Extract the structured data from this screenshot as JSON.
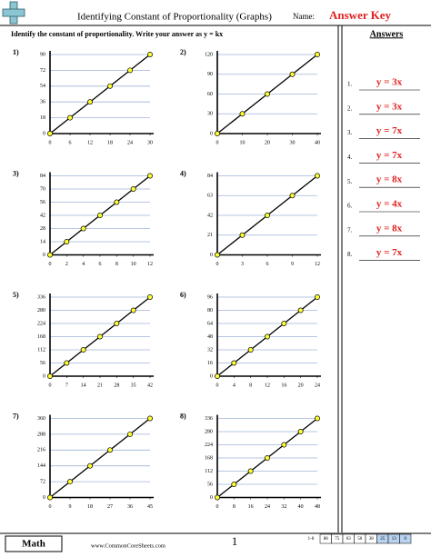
{
  "header": {
    "title": "Identifying Constant of Proportionality (Graphs)",
    "name_label": "Name:",
    "answer_key": "Answer Key"
  },
  "instructions": "Identify the constant of proportionality. Write your answer as y = kx",
  "problems": [
    {
      "label": "1)",
      "chart": {
        "type": "line",
        "x": [
          0,
          6,
          12,
          18,
          24,
          30
        ],
        "values": [
          0,
          18,
          36,
          54,
          72,
          90
        ],
        "xlim": [
          0,
          30
        ],
        "ylim": [
          0,
          90
        ],
        "xticks": [
          0,
          6,
          12,
          18,
          24,
          30
        ],
        "yticks": [
          0,
          18,
          36,
          54,
          72,
          90
        ],
        "grid": true,
        "color": "#000000",
        "marker_color": "#ffff33"
      }
    },
    {
      "label": "2)",
      "chart": {
        "type": "line",
        "x": [
          0,
          10,
          20,
          30,
          40
        ],
        "values": [
          0,
          30,
          60,
          90,
          120
        ],
        "xlim": [
          0,
          40
        ],
        "ylim": [
          0,
          120
        ],
        "xticks": [
          0,
          10,
          20,
          30,
          40
        ],
        "yticks": [
          0,
          30,
          60,
          90,
          120
        ],
        "grid": true,
        "color": "#000000",
        "marker_color": "#ffff33"
      }
    },
    {
      "label": "3)",
      "chart": {
        "type": "line",
        "x": [
          0,
          2,
          4,
          6,
          8,
          10,
          12
        ],
        "values": [
          0,
          14,
          28,
          42,
          56,
          70,
          84
        ],
        "xlim": [
          0,
          12
        ],
        "ylim": [
          0,
          84
        ],
        "xticks": [
          0,
          2,
          4,
          6,
          8,
          10,
          12
        ],
        "yticks": [
          0,
          14,
          28,
          42,
          56,
          70,
          84
        ],
        "grid": true,
        "color": "#000000",
        "marker_color": "#ffff33"
      }
    },
    {
      "label": "4)",
      "chart": {
        "type": "line",
        "x": [
          0,
          3,
          6,
          9,
          12
        ],
        "values": [
          0,
          21,
          42,
          63,
          84
        ],
        "xlim": [
          0,
          12
        ],
        "ylim": [
          0,
          84
        ],
        "xticks": [
          0,
          3,
          6,
          9,
          12
        ],
        "yticks": [
          0,
          21,
          42,
          63,
          84
        ],
        "grid": true,
        "color": "#000000",
        "marker_color": "#ffff33"
      }
    },
    {
      "label": "5)",
      "chart": {
        "type": "line",
        "x": [
          0,
          7,
          14,
          21,
          28,
          35,
          42
        ],
        "values": [
          0,
          56,
          112,
          168,
          224,
          280,
          336
        ],
        "xlim": [
          0,
          42
        ],
        "ylim": [
          0,
          336
        ],
        "xticks": [
          0,
          7,
          14,
          21,
          28,
          35,
          42
        ],
        "yticks": [
          0,
          56,
          112,
          168,
          224,
          280,
          336
        ],
        "grid": true,
        "color": "#000000",
        "marker_color": "#ffff33"
      }
    },
    {
      "label": "6)",
      "chart": {
        "type": "line",
        "x": [
          0,
          4,
          8,
          12,
          16,
          20,
          24
        ],
        "values": [
          0,
          16,
          32,
          48,
          64,
          80,
          96
        ],
        "xlim": [
          0,
          24
        ],
        "ylim": [
          0,
          96
        ],
        "xticks": [
          0,
          4,
          8,
          12,
          16,
          20,
          24
        ],
        "yticks": [
          0,
          16,
          32,
          48,
          64,
          80,
          96
        ],
        "grid": true,
        "color": "#000000",
        "marker_color": "#ffff33"
      }
    },
    {
      "label": "7)",
      "chart": {
        "type": "line",
        "x": [
          0,
          9,
          18,
          27,
          36,
          45
        ],
        "values": [
          0,
          72,
          144,
          216,
          288,
          360
        ],
        "xlim": [
          0,
          45
        ],
        "ylim": [
          0,
          360
        ],
        "xticks": [
          0,
          9,
          18,
          27,
          36,
          45
        ],
        "yticks": [
          0,
          72,
          144,
          216,
          288,
          360
        ],
        "grid": true,
        "color": "#000000",
        "marker_color": "#ffff33"
      }
    },
    {
      "label": "8)",
      "chart": {
        "type": "line",
        "x": [
          0,
          8,
          16,
          24,
          32,
          40,
          48
        ],
        "values": [
          0,
          56,
          112,
          168,
          224,
          280,
          336
        ],
        "xlim": [
          0,
          48
        ],
        "ylim": [
          0,
          336
        ],
        "xticks": [
          0,
          8,
          16,
          24,
          32,
          40,
          48
        ],
        "yticks": [
          0,
          56,
          112,
          168,
          224,
          280,
          336
        ],
        "grid": true,
        "color": "#000000",
        "marker_color": "#ffff33"
      }
    }
  ],
  "answers": {
    "title": "Answers",
    "items": [
      {
        "number": "1.",
        "answer": "y = 3x"
      },
      {
        "number": "2.",
        "answer": "y = 3x"
      },
      {
        "number": "3.",
        "answer": "y = 7x"
      },
      {
        "number": "4.",
        "answer": "y = 7x"
      },
      {
        "number": "5.",
        "answer": "y = 8x"
      },
      {
        "number": "6.",
        "answer": "y = 4x"
      },
      {
        "number": "7.",
        "answer": "y = 8x"
      },
      {
        "number": "8.",
        "answer": "y = 7x"
      }
    ]
  },
  "footer": {
    "subject": "Math",
    "website": "www.CommonCoreSheets.com",
    "page": 1,
    "score_range": "1-8",
    "scores": [
      88,
      75,
      63,
      50,
      38,
      25,
      13,
      0
    ]
  }
}
